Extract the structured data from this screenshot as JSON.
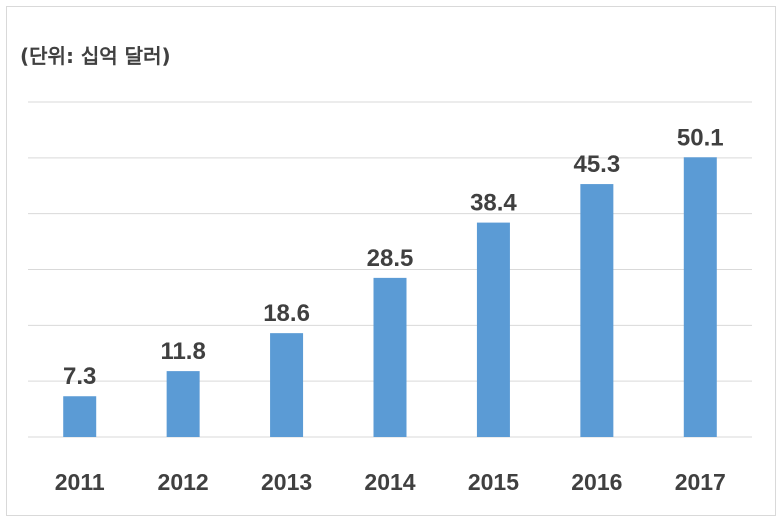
{
  "chart_data": {
    "type": "bar",
    "unit_label": "(단위: 십억 달러)",
    "categories": [
      "2011",
      "2012",
      "2013",
      "2014",
      "2015",
      "2016",
      "2017"
    ],
    "values": [
      7.3,
      11.8,
      18.6,
      28.5,
      38.4,
      45.3,
      50.1
    ],
    "data_labels": [
      "7.3",
      "11.8",
      "18.6",
      "28.5",
      "38.4",
      "45.3",
      "50.1"
    ],
    "ylim": [
      0,
      60
    ],
    "grid": true,
    "legend": "none",
    "colors": {
      "bar": "#5b9bd5",
      "grid": "#d9d9d9",
      "text": "#404040"
    }
  }
}
